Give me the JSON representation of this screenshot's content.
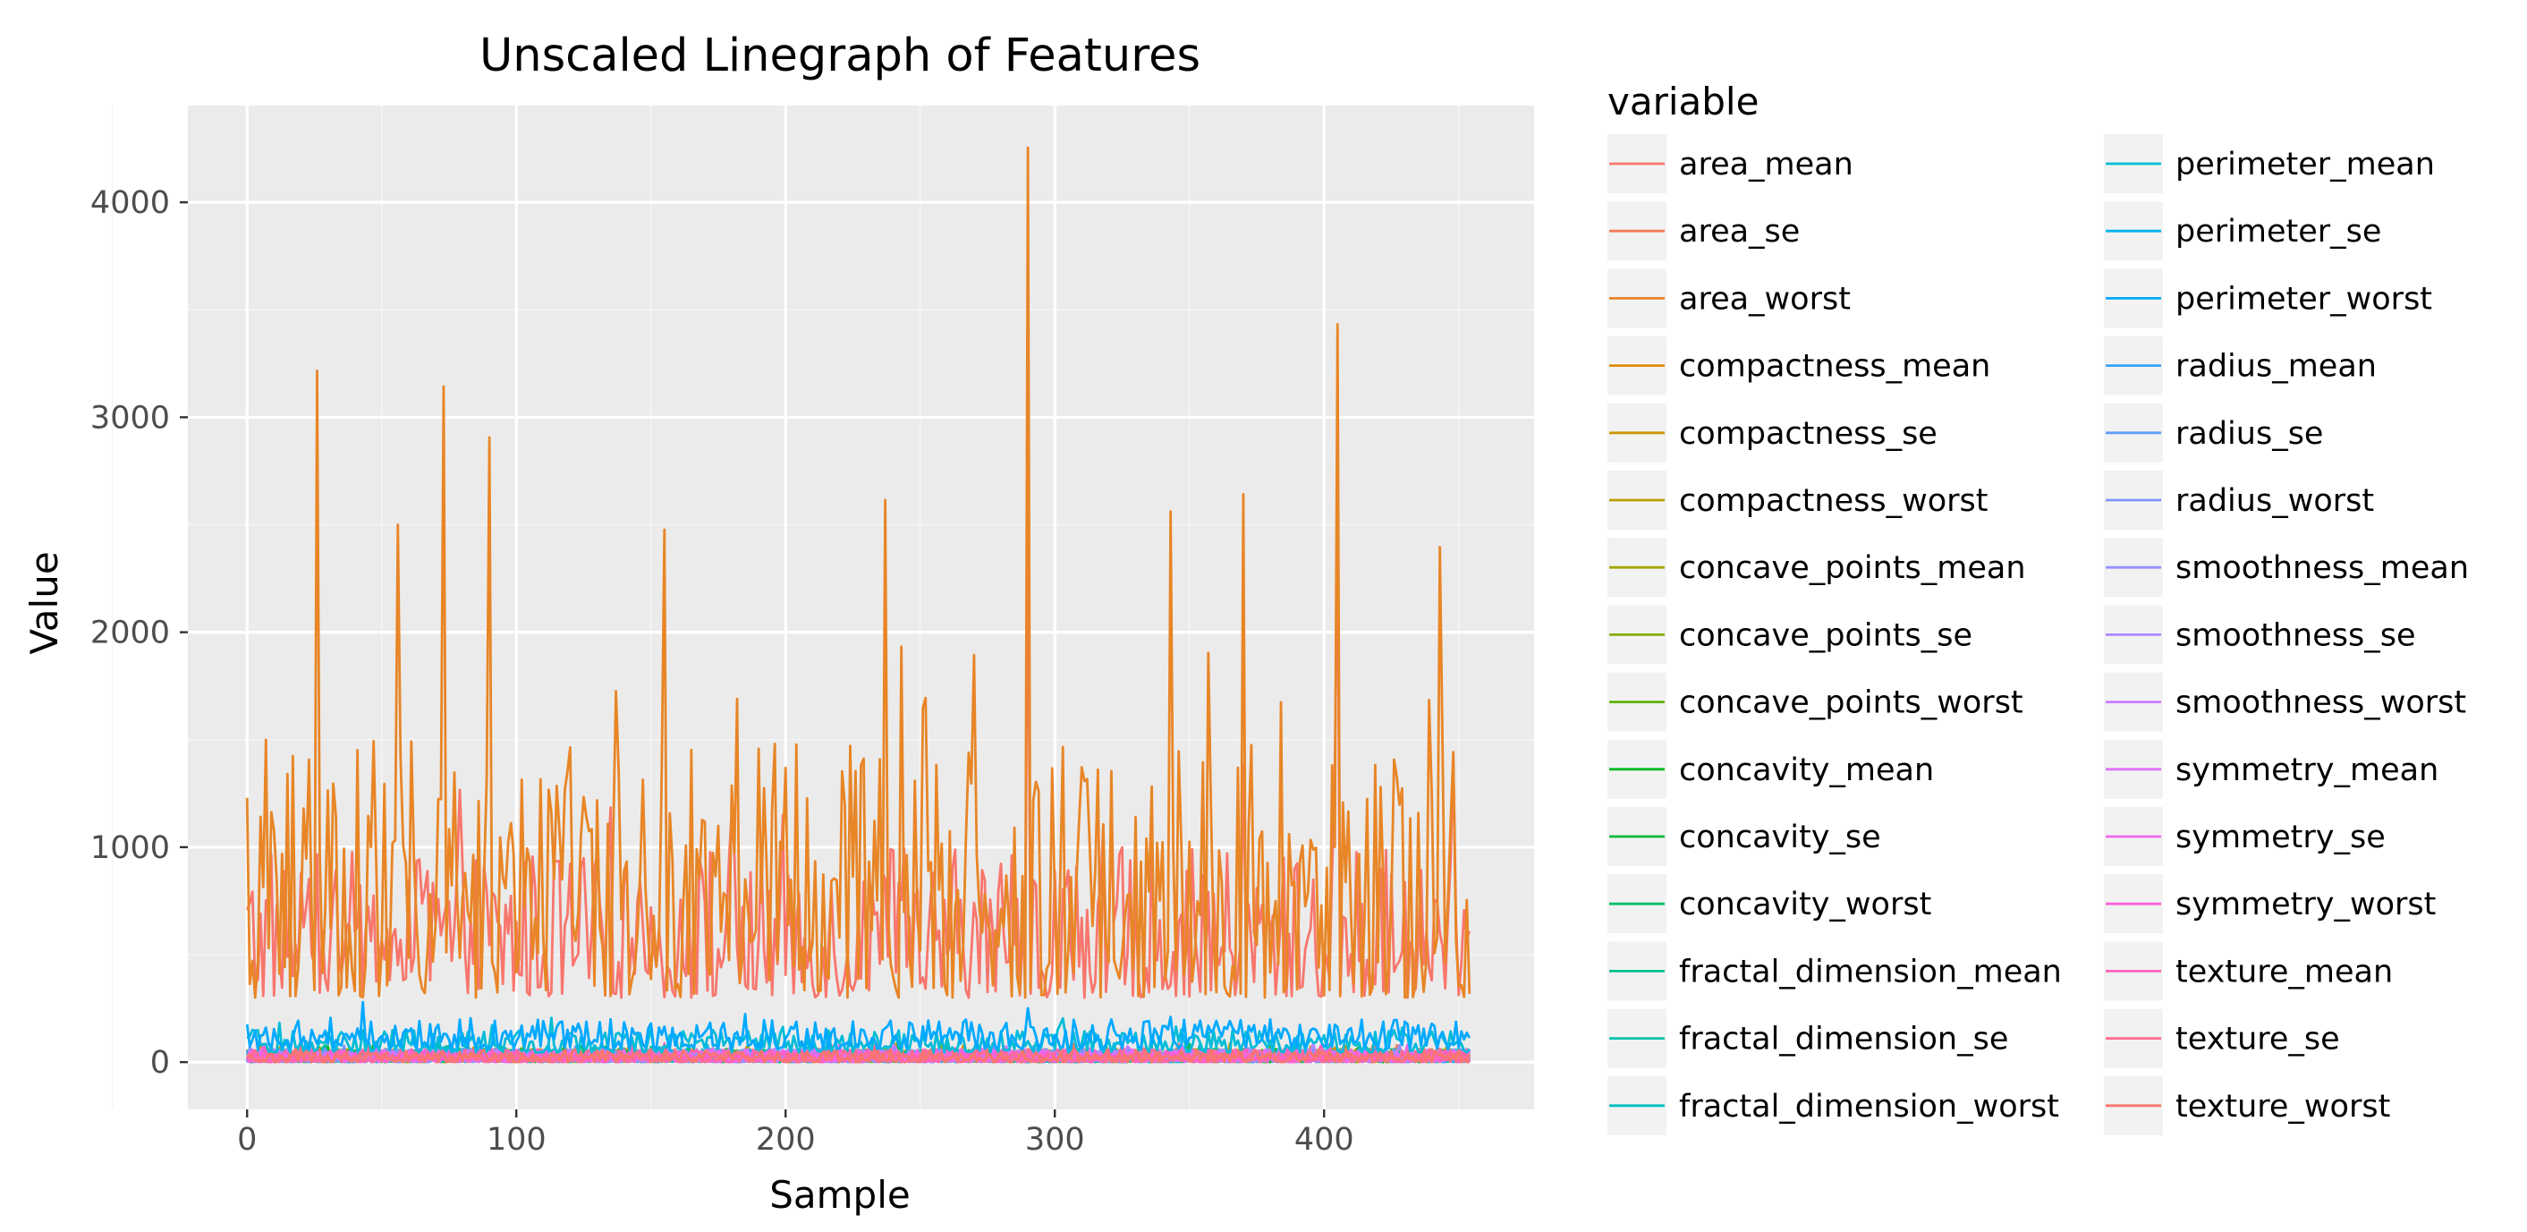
{
  "chart_data": {
    "type": "line",
    "title": "Unscaled Linegraph of Features",
    "xlabel": "Sample",
    "ylabel": "Value",
    "xlim": [
      -22,
      478
    ],
    "ylim": [
      -220,
      4450
    ],
    "x_ticks": [
      0,
      100,
      200,
      300,
      400
    ],
    "y_ticks": [
      0,
      1000,
      2000,
      3000,
      4000
    ],
    "grid": true,
    "legend_title": "variable",
    "legend_position": "right",
    "legend_columns": 2,
    "n_samples": 455,
    "series": [
      {
        "name": "area_mean",
        "color": "#F8766D"
      },
      {
        "name": "area_se",
        "color": "#F37B59"
      },
      {
        "name": "area_worst",
        "color": "#E88526"
      },
      {
        "name": "compactness_mean",
        "color": "#DE8C00"
      },
      {
        "name": "compactness_se",
        "color": "#CD9600"
      },
      {
        "name": "compactness_worst",
        "color": "#BB9D00"
      },
      {
        "name": "concave_points_mean",
        "color": "#A3A500"
      },
      {
        "name": "concave_points_se",
        "color": "#86AC00"
      },
      {
        "name": "concave_points_worst",
        "color": "#5BB300"
      },
      {
        "name": "concavity_mean",
        "color": "#00B81F"
      },
      {
        "name": "concavity_se",
        "color": "#00BA38"
      },
      {
        "name": "concavity_worst",
        "color": "#00BE67"
      },
      {
        "name": "fractal_dimension_mean",
        "color": "#00C08B"
      },
      {
        "name": "fractal_dimension_se",
        "color": "#00C1A9"
      },
      {
        "name": "fractal_dimension_worst",
        "color": "#00BFC4"
      },
      {
        "name": "perimeter_mean",
        "color": "#00BCD8"
      },
      {
        "name": "perimeter_se",
        "color": "#00B4EF"
      },
      {
        "name": "perimeter_worst",
        "color": "#00A9FF"
      },
      {
        "name": "radius_mean",
        "color": "#35A2FF"
      },
      {
        "name": "radius_se",
        "color": "#619CFF"
      },
      {
        "name": "radius_worst",
        "color": "#7F96FF"
      },
      {
        "name": "smoothness_mean",
        "color": "#9590FF"
      },
      {
        "name": "smoothness_se",
        "color": "#AE87FF"
      },
      {
        "name": "smoothness_worst",
        "color": "#C77CFF"
      },
      {
        "name": "symmetry_mean",
        "color": "#DE71F9"
      },
      {
        "name": "symmetry_se",
        "color": "#EF67EB"
      },
      {
        "name": "symmetry_worst",
        "color": "#FB61D7"
      },
      {
        "name": "texture_mean",
        "color": "#FF62BC"
      },
      {
        "name": "texture_se",
        "color": "#FF6C91"
      },
      {
        "name": "texture_worst",
        "color": "#F8766D"
      }
    ],
    "series_summary": {
      "area_worst": {
        "typical_range": [
          300,
          1500
        ],
        "peaks": [
          [
            26,
            3216
          ],
          [
            56,
            2500
          ],
          [
            73,
            3143
          ],
          [
            90,
            2906
          ],
          [
            155,
            2477
          ],
          [
            237,
            2615
          ],
          [
            290,
            4254
          ],
          [
            343,
            2562
          ],
          [
            370,
            2642
          ],
          [
            405,
            3432
          ],
          [
            443,
            2396
          ]
        ]
      },
      "area_mean": {
        "typical_range": [
          300,
          1000
        ],
        "peaks": [
          [
            290,
            2501
          ],
          [
            405,
            2499
          ],
          [
            370,
            1386
          ]
        ]
      },
      "perimeter_worst": {
        "typical_range": [
          60,
          200
        ],
        "peaks": [
          [
            290,
            251
          ]
        ]
      },
      "perimeter_mean": {
        "typical_range": [
          45,
          150
        ]
      },
      "other_series": {
        "typical_range": [
          0,
          60
        ]
      }
    }
  }
}
